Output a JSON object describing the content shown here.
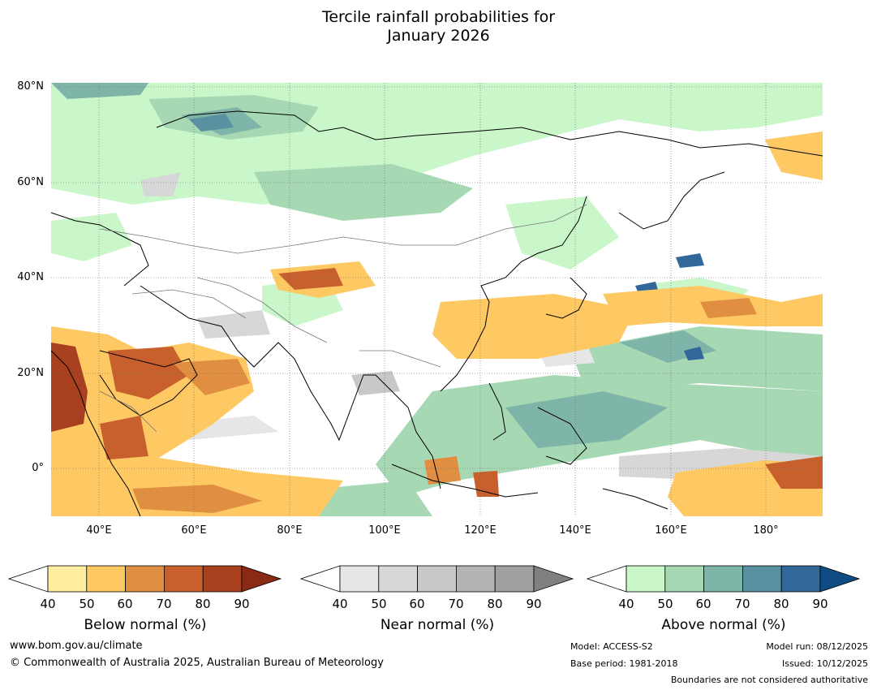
{
  "title": {
    "line1": "Tercile rainfall probabilities for",
    "line2": "January 2026"
  },
  "map": {
    "lat_labels": [
      "80°N",
      "60°N",
      "40°N",
      "20°N",
      "0°"
    ],
    "lon_labels": [
      "40°E",
      "60°E",
      "80°E",
      "100°E",
      "120°E",
      "140°E",
      "160°E",
      "180°"
    ]
  },
  "colorbars": [
    {
      "label": "Below normal (%)",
      "ticks": [
        "40",
        "50",
        "60",
        "70",
        "80",
        "90"
      ],
      "colors": [
        "#ffffff",
        "#ffeda0",
        "#fec862",
        "#e08e42",
        "#c8602e",
        "#a8401f",
        "#8a2a12"
      ]
    },
    {
      "label": "Near normal (%)",
      "ticks": [
        "40",
        "50",
        "60",
        "70",
        "80",
        "90"
      ],
      "colors": [
        "#ffffff",
        "#e6e6e6",
        "#d7d7d7",
        "#c8c8c8",
        "#b4b5b2",
        "#a0a0a0",
        "#808080"
      ]
    },
    {
      "label": "Above normal (%)",
      "ticks": [
        "40",
        "50",
        "60",
        "70",
        "80",
        "90"
      ],
      "colors": [
        "#ffffff",
        "#c9f7c9",
        "#a6d8b4",
        "#7fb5a8",
        "#5a91a0",
        "#32679a",
        "#104c84"
      ]
    }
  ],
  "footer": {
    "website": "www.bom.gov.au/climate",
    "copyright": "© Commonwealth of Australia 2025, Australian Bureau of Meteorology",
    "model": "Model: ACCESS-S2",
    "base_period": "Base period: 1981-2018",
    "model_run": "Model run: 08/12/2025",
    "issued": "Issued: 10/12/2025",
    "boundaries": "Boundaries are not considered authoritative"
  }
}
